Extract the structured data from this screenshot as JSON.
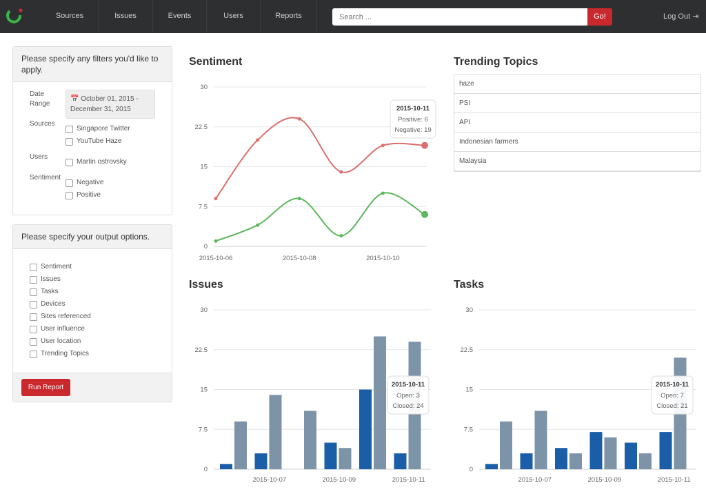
{
  "nav": {
    "items": [
      "Sources",
      "Issues",
      "Events",
      "Users",
      "Reports"
    ],
    "search_placeholder": "Search ...",
    "search_button": "Go!",
    "logout": "Log Out"
  },
  "filters": {
    "title": "Please specify any filters you'd like to apply.",
    "date_label": "Date Range",
    "date_value": "October 01, 2015 - December 31, 2015",
    "groups": [
      {
        "label": "Sources",
        "options": [
          "Singapore Twitter",
          "YouTube Haze"
        ]
      },
      {
        "label": "Users",
        "options": [
          "Martin ostrovsky"
        ]
      },
      {
        "label": "Sentiment",
        "options": [
          "Negative",
          "Positive"
        ]
      }
    ]
  },
  "output": {
    "title": "Please specify your output options.",
    "options": [
      "Sentiment",
      "Issues",
      "Tasks",
      "Devices",
      "Sites referenced",
      "User influence",
      "User location",
      "Trending Topics"
    ],
    "button": "Run Report"
  },
  "sentiment": {
    "type": "line",
    "title": "Sentiment",
    "categories": [
      "2015-10-06",
      null,
      "2015-10-08",
      null,
      "2015-10-10",
      null
    ],
    "series": [
      {
        "name": "Positive",
        "color": "#5cb85c",
        "values": [
          1,
          4,
          9,
          2,
          10,
          6
        ]
      },
      {
        "name": "Negative",
        "color": "#d9706d",
        "values": [
          9,
          20,
          24,
          14,
          19,
          19
        ]
      }
    ],
    "ylim": [
      0,
      30
    ],
    "yticks": [
      0,
      7.5,
      15,
      22.5,
      30
    ],
    "grid": true,
    "tooltip": {
      "title": "2015-10-11",
      "lines": [
        "Positive: 6",
        "Negative: 19"
      ]
    }
  },
  "trending": {
    "title": "Trending Topics",
    "items": [
      "haze",
      "PSI",
      "API",
      "Indonesian farmers",
      "Malaysia"
    ]
  },
  "issues": {
    "type": "bar",
    "title": "Issues",
    "categories": [
      null,
      "2015-10-07",
      null,
      "2015-10-09",
      null,
      "2015-10-11"
    ],
    "series": [
      {
        "name": "Open",
        "color": "#1a5ea8",
        "values": [
          1,
          3,
          0,
          5,
          15,
          3
        ]
      },
      {
        "name": "Closed",
        "color": "#7d93a8",
        "values": [
          9,
          14,
          11,
          4,
          25,
          24
        ]
      }
    ],
    "ylim": [
      0,
      30
    ],
    "yticks": [
      0,
      7.5,
      15,
      22.5,
      30
    ],
    "grid": true,
    "tooltip": {
      "title": "2015-10-11",
      "lines": [
        "Open: 3",
        "Closed: 24"
      ]
    }
  },
  "tasks": {
    "type": "bar",
    "title": "Tasks",
    "categories": [
      null,
      "2015-10-07",
      null,
      "2015-10-09",
      null,
      "2015-10-11"
    ],
    "series": [
      {
        "name": "Open",
        "color": "#1a5ea8",
        "values": [
          1,
          3,
          4,
          7,
          5,
          7
        ]
      },
      {
        "name": "Closed",
        "color": "#7d93a8",
        "values": [
          9,
          11,
          3,
          6,
          3,
          21
        ]
      }
    ],
    "ylim": [
      0,
      30
    ],
    "yticks": [
      0,
      7.5,
      15,
      22.5,
      30
    ],
    "grid": true,
    "tooltip": {
      "title": "2015-10-11",
      "lines": [
        "Open: 7",
        "Closed: 21"
      ]
    }
  }
}
